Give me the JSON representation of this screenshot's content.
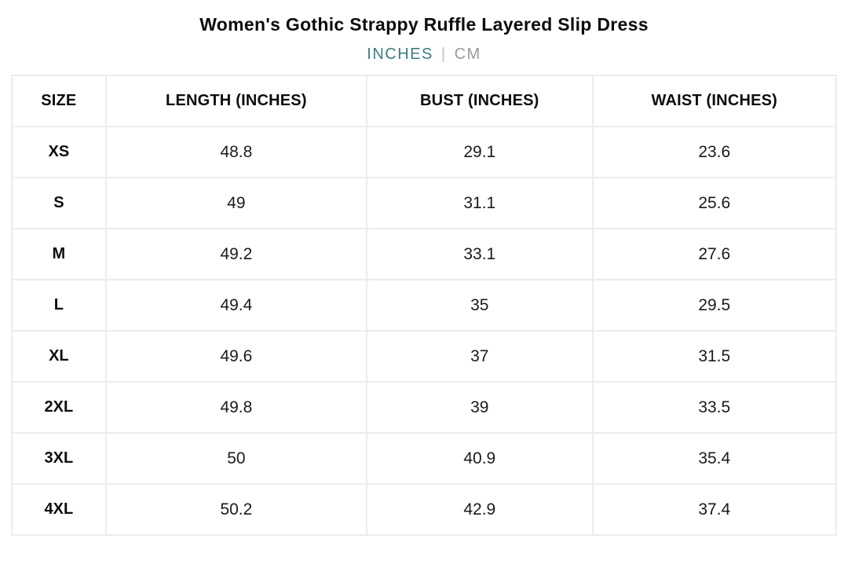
{
  "page": {
    "title": "Women's Gothic Strappy Ruffle Layered Slip Dress"
  },
  "unit_toggle": {
    "inches_label": "INCHES",
    "separator": "|",
    "cm_label": "CM",
    "active_unit": "INCHES",
    "active_color": "#3e7b83",
    "inactive_color": "#9a9a9a"
  },
  "chart_data": {
    "type": "table",
    "title": "Women's Gothic Strappy Ruffle Layered Slip Dress",
    "unit": "INCHES",
    "columns": [
      "SIZE",
      "LENGTH (INCHES)",
      "BUST (INCHES)",
      "WAIST (INCHES)"
    ],
    "rows": [
      [
        "XS",
        "48.8",
        "29.1",
        "23.6"
      ],
      [
        "S",
        "49",
        "31.1",
        "25.6"
      ],
      [
        "M",
        "49.2",
        "33.1",
        "27.6"
      ],
      [
        "L",
        "49.4",
        "35",
        "29.5"
      ],
      [
        "XL",
        "49.6",
        "37",
        "31.5"
      ],
      [
        "2XL",
        "49.8",
        "39",
        "33.5"
      ],
      [
        "3XL",
        "50",
        "40.9",
        "35.4"
      ],
      [
        "4XL",
        "50.2",
        "42.9",
        "37.4"
      ]
    ]
  },
  "colors": {
    "border": "#ececec",
    "text": "#0d0d0d",
    "background": "#ffffff"
  }
}
